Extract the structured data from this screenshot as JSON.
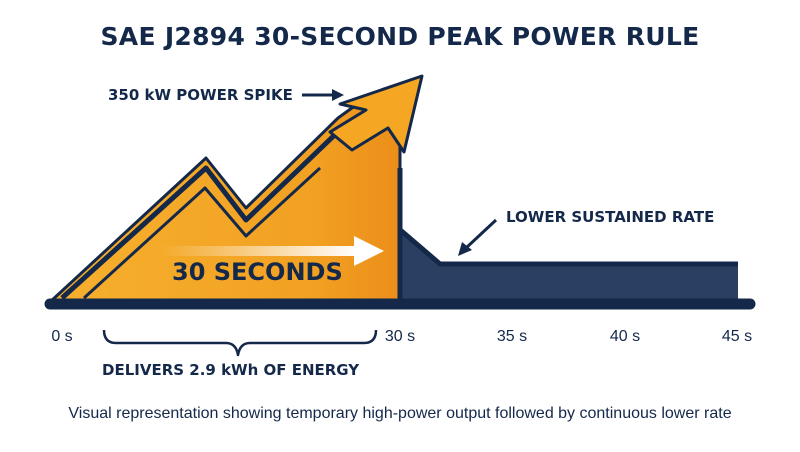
{
  "title": "SAE J2894 30-SECOND PEAK POWER RULE",
  "labels": {
    "spike": "350 kW POWER SPIKE",
    "sustained": "LOWER SUSTAINED RATE",
    "duration": "30 SECONDS",
    "energy": "DELIVERS 2.9 kWh OF ENERGY"
  },
  "axis": {
    "ticks": [
      {
        "label": "0 s",
        "value": 0
      },
      {
        "label": "30 s",
        "value": 30
      },
      {
        "label": "35 s",
        "value": 35
      },
      {
        "label": "40 s",
        "value": 40
      },
      {
        "label": "45 s",
        "value": 45
      }
    ]
  },
  "caption": "Visual representation showing temporary high-power output followed by continuous lower rate",
  "colors": {
    "navy": "#14284a",
    "orange": "#f5a623",
    "orange_dark": "#e8891a",
    "sustained_fill": "#2b3f63"
  }
}
